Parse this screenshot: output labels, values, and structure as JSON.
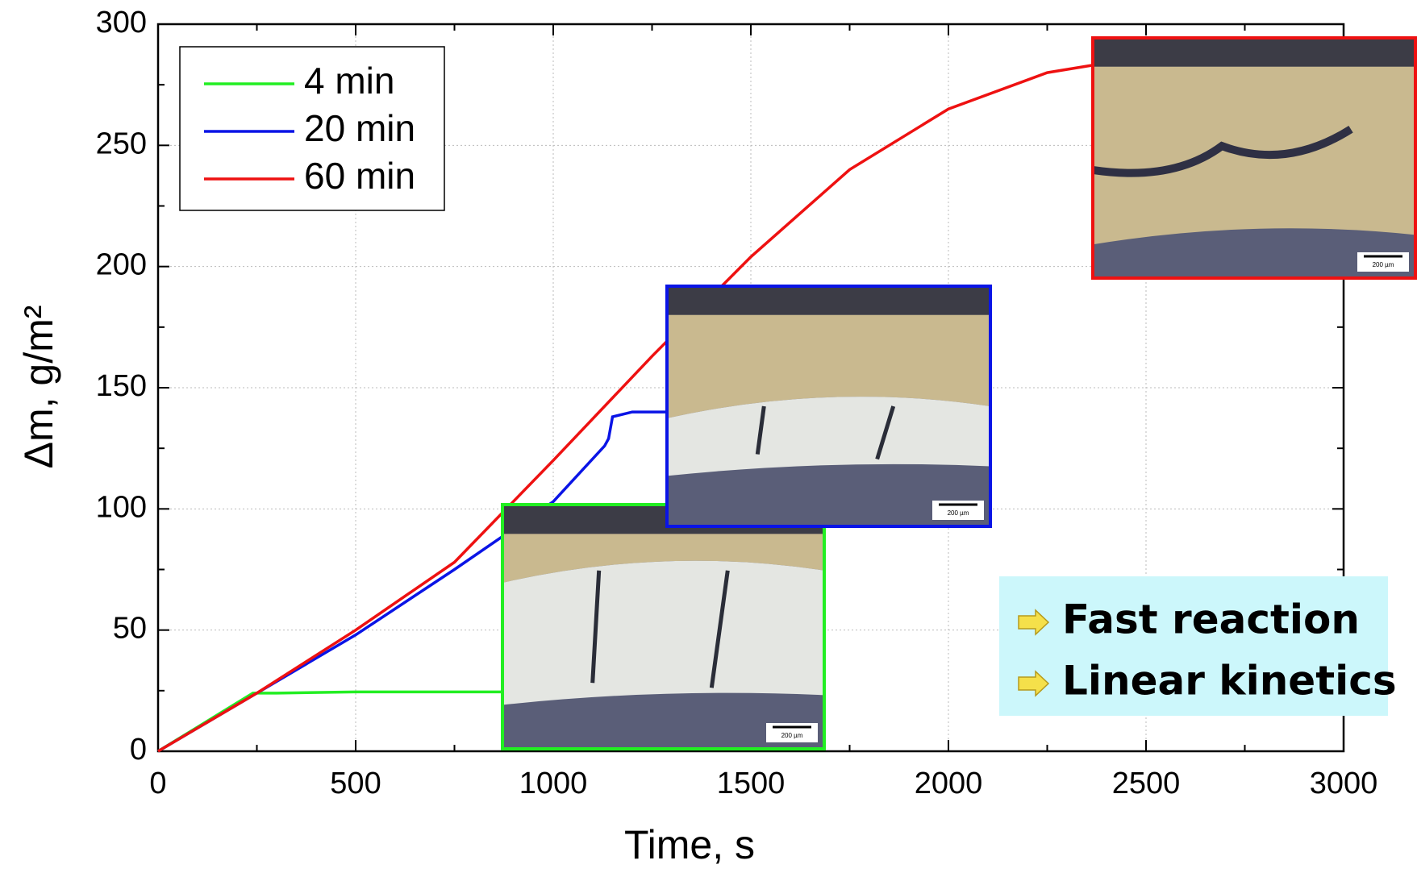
{
  "chart_data": {
    "type": "line",
    "x_label": "Time, s",
    "y_label": "Δm, g/m²",
    "xlim": [
      0,
      3000
    ],
    "xticks": [
      0,
      500,
      1000,
      1500,
      2000,
      2500,
      3000
    ],
    "ylim": [
      0,
      300
    ],
    "yticks": [
      0,
      50,
      100,
      150,
      200,
      250,
      300
    ],
    "grid": true,
    "legend": "upper left",
    "series": [
      {
        "name": "4 min",
        "color": "#22ee22",
        "x": [
          0,
          50,
          100,
          150,
          200,
          240,
          300,
          500,
          869
        ],
        "values": [
          0,
          5,
          10,
          15,
          20,
          24,
          24,
          24.5,
          24.5
        ]
      },
      {
        "name": "20 min",
        "color": "#0a14e6",
        "x": [
          0,
          250,
          500,
          750,
          1000,
          1130,
          1140,
          1150,
          1200,
          1285
        ],
        "values": [
          0,
          24,
          48,
          75,
          103,
          126,
          129,
          138,
          140,
          140
        ]
      },
      {
        "name": "60 min",
        "color": "#ee1111",
        "x": [
          0,
          250,
          500,
          750,
          1000,
          1250,
          1500,
          1750,
          2000,
          2250,
          2362
        ],
        "values": [
          0,
          24,
          50,
          78,
          120,
          163,
          204,
          240,
          265,
          280,
          283
        ]
      }
    ],
    "annotations": [
      "Fast reaction",
      "Linear kinetics"
    ],
    "inset_scale_labels": [
      "200 µm",
      "200 µm",
      "200 µm"
    ]
  }
}
